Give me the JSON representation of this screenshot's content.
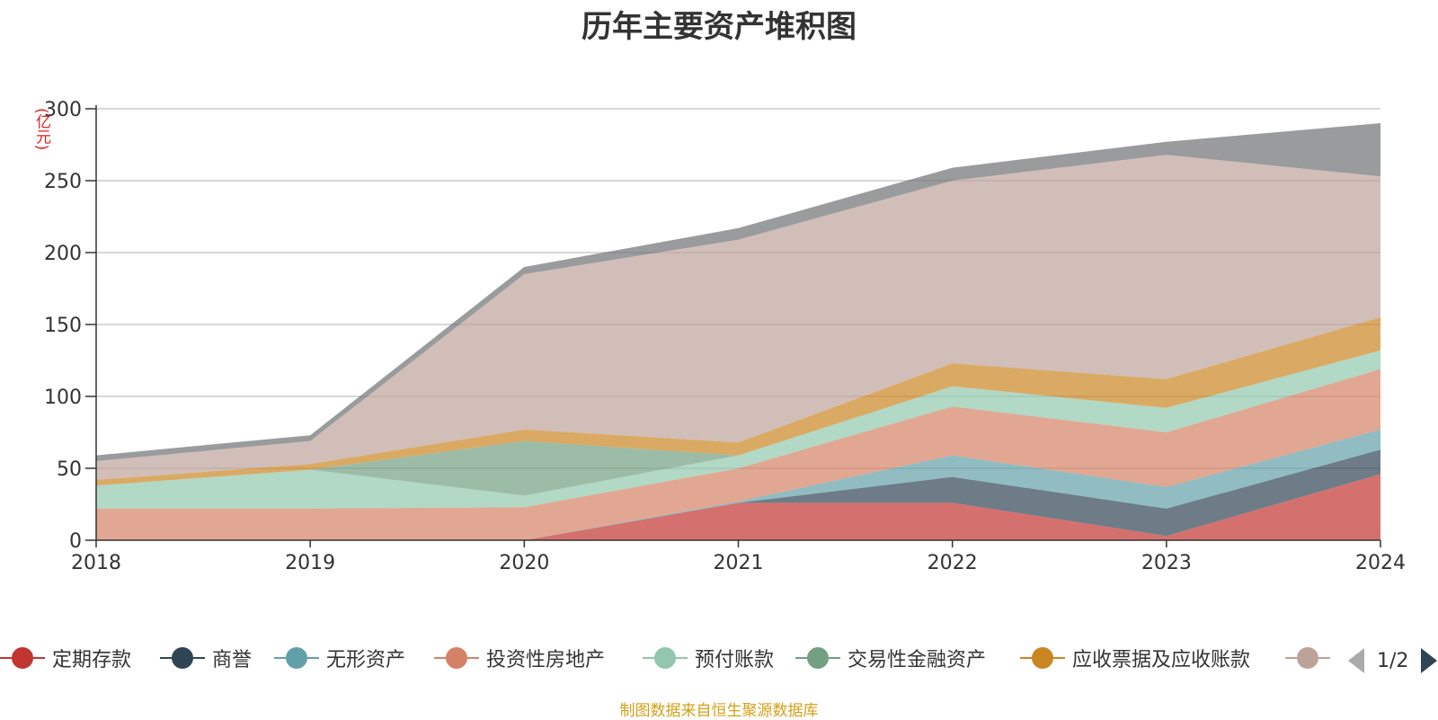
{
  "chart_data": {
    "type": "area",
    "title": "历年主要资产堆积图",
    "unit": "(亿元)",
    "xlabel": "",
    "ylabel": "",
    "x": [
      "2018",
      "2019",
      "2020",
      "2021",
      "2022",
      "2023",
      "2024"
    ],
    "ylim": [
      0,
      300
    ],
    "yticks": [
      0,
      50,
      100,
      150,
      200,
      250,
      300
    ],
    "stacked": true,
    "grid": true,
    "series": [
      {
        "name": "定期存款",
        "color": "#c23531",
        "values": [
          0,
          0,
          0,
          26,
          26,
          3,
          46
        ]
      },
      {
        "name": "商誉",
        "color": "#2f4554",
        "values": [
          0,
          0,
          0,
          0,
          18,
          19,
          17
        ]
      },
      {
        "name": "无形资产",
        "color": "#61a0a8",
        "values": [
          0,
          0,
          0,
          1,
          15,
          15,
          14
        ]
      },
      {
        "name": "投资性房地产",
        "color": "#d48265",
        "values": [
          22,
          22,
          23,
          23,
          34,
          38,
          42
        ]
      },
      {
        "name": "预付账款",
        "color": "#91c7ae",
        "values": [
          16,
          27,
          8,
          9,
          14,
          17,
          13
        ]
      },
      {
        "name": "交易性金融资产",
        "color": "#749f83",
        "values": [
          0,
          0,
          38,
          0,
          0,
          0,
          0
        ]
      },
      {
        "name": "应收票据及应收账款",
        "color": "#ca8622",
        "values": [
          4,
          4,
          8,
          9,
          16,
          20,
          23
        ]
      },
      {
        "name": "",
        "color": "#bda29a",
        "values": [
          13,
          16,
          108,
          141,
          127,
          156,
          98
        ]
      },
      {
        "name": "",
        "color": "#6e7074",
        "values": [
          4,
          4,
          5,
          8,
          9,
          9,
          37
        ]
      }
    ],
    "legend_position": "bottom"
  },
  "legend": {
    "items": [
      {
        "label": "定期存款",
        "color": "#c23531"
      },
      {
        "label": "商誉",
        "color": "#2f4554"
      },
      {
        "label": "无形资产",
        "color": "#61a0a8"
      },
      {
        "label": "投资性房地产",
        "color": "#d48265"
      },
      {
        "label": "预付账款",
        "color": "#91c7ae"
      },
      {
        "label": "交易性金融资产",
        "color": "#749f83"
      },
      {
        "label": "应收票据及应收账款",
        "color": "#ca8622"
      },
      {
        "label": "",
        "color": "#bda29a"
      }
    ],
    "page": "1/2"
  },
  "source": "制图数据来自恒生聚源数据库"
}
